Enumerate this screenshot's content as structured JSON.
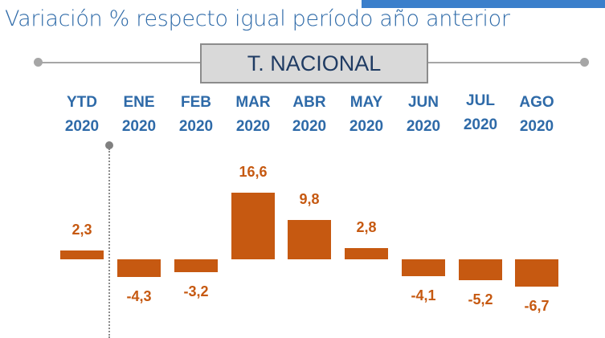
{
  "header": {
    "title": "Variación % respecto igual período año anterior",
    "series_label": "T. NACIONAL"
  },
  "colors": {
    "bar": "#c65911",
    "category": "#2e6aa8",
    "title": "#2e6aa8",
    "accent": "#3b7fcb"
  },
  "chart_data": {
    "type": "bar",
    "title": "Variación % respecto igual período año anterior",
    "series_name": "T. NACIONAL",
    "categories": [
      [
        "YTD",
        "2020"
      ],
      [
        "ENE",
        "2020"
      ],
      [
        "FEB",
        "2020"
      ],
      [
        "MAR",
        "2020"
      ],
      [
        "ABR",
        "2020"
      ],
      [
        "MAY",
        "2020"
      ],
      [
        "JUN",
        "2020"
      ],
      [
        "JUL",
        "2020"
      ],
      [
        "AGO",
        "2020"
      ]
    ],
    "values": [
      2.3,
      -4.3,
      -3.2,
      16.6,
      9.8,
      2.8,
      -4.1,
      -5.2,
      -6.7
    ],
    "value_labels": [
      "2,3",
      "-4,3",
      "-3,2",
      "16,6",
      "9,8",
      "2,8",
      "-4,1",
      "-5,2",
      "-6,7"
    ],
    "xlabel": "",
    "ylabel": "",
    "grid": false,
    "legend": "none"
  }
}
